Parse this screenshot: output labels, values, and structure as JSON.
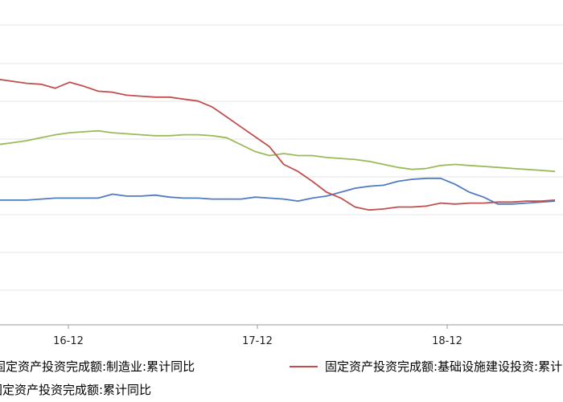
{
  "chart_data": {
    "type": "line",
    "y_range": [
      -10,
      22
    ],
    "grid": true,
    "x_ticks": [
      "16-12",
      "17-12",
      "18-12"
    ],
    "series": [
      {
        "name": "固定资产投资完成额:制造业:累计同比",
        "color": "#4F7CC2",
        "values": [
          2.6,
          2.6,
          2.6,
          2.6,
          2.7,
          2.8,
          2.8,
          2.8,
          2.8,
          3.2,
          3.0,
          3.0,
          3.1,
          2.9,
          2.8,
          2.8,
          2.7,
          2.7,
          2.7,
          2.9,
          2.8,
          2.7,
          2.5,
          2.8,
          3.0,
          3.4,
          3.8,
          4.0,
          4.1,
          4.5,
          4.7,
          4.8,
          4.8,
          4.2,
          3.4,
          2.9,
          2.2,
          2.2,
          2.3,
          2.4,
          2.5
        ]
      },
      {
        "name": "固定资产投资完成额:基础设施建设投资:累计同比",
        "color": "#C0504D",
        "values": [
          15.0,
          14.8,
          14.6,
          14.4,
          14.3,
          13.9,
          14.5,
          14.1,
          13.6,
          13.5,
          13.2,
          13.1,
          13.0,
          13.0,
          12.8,
          12.6,
          12.0,
          11.0,
          10.0,
          9.0,
          8.0,
          6.2,
          5.5,
          4.5,
          3.4,
          2.8,
          1.9,
          1.6,
          1.7,
          1.9,
          1.9,
          2.0,
          2.3,
          2.2,
          2.3,
          2.3,
          2.4,
          2.4,
          2.5,
          2.5,
          2.6
        ]
      },
      {
        "name": "固定资产投资完成额:累计同比",
        "color": "#9BBB59",
        "values": [
          8.0,
          8.2,
          8.4,
          8.6,
          8.9,
          9.2,
          9.4,
          9.5,
          9.6,
          9.4,
          9.3,
          9.2,
          9.1,
          9.1,
          9.2,
          9.2,
          9.1,
          8.9,
          8.2,
          7.5,
          7.1,
          7.3,
          7.1,
          7.1,
          6.9,
          6.8,
          6.7,
          6.5,
          6.2,
          5.9,
          5.7,
          5.8,
          6.1,
          6.2,
          6.1,
          6.0,
          5.9,
          5.8,
          5.7,
          5.6,
          5.5
        ]
      }
    ]
  }
}
